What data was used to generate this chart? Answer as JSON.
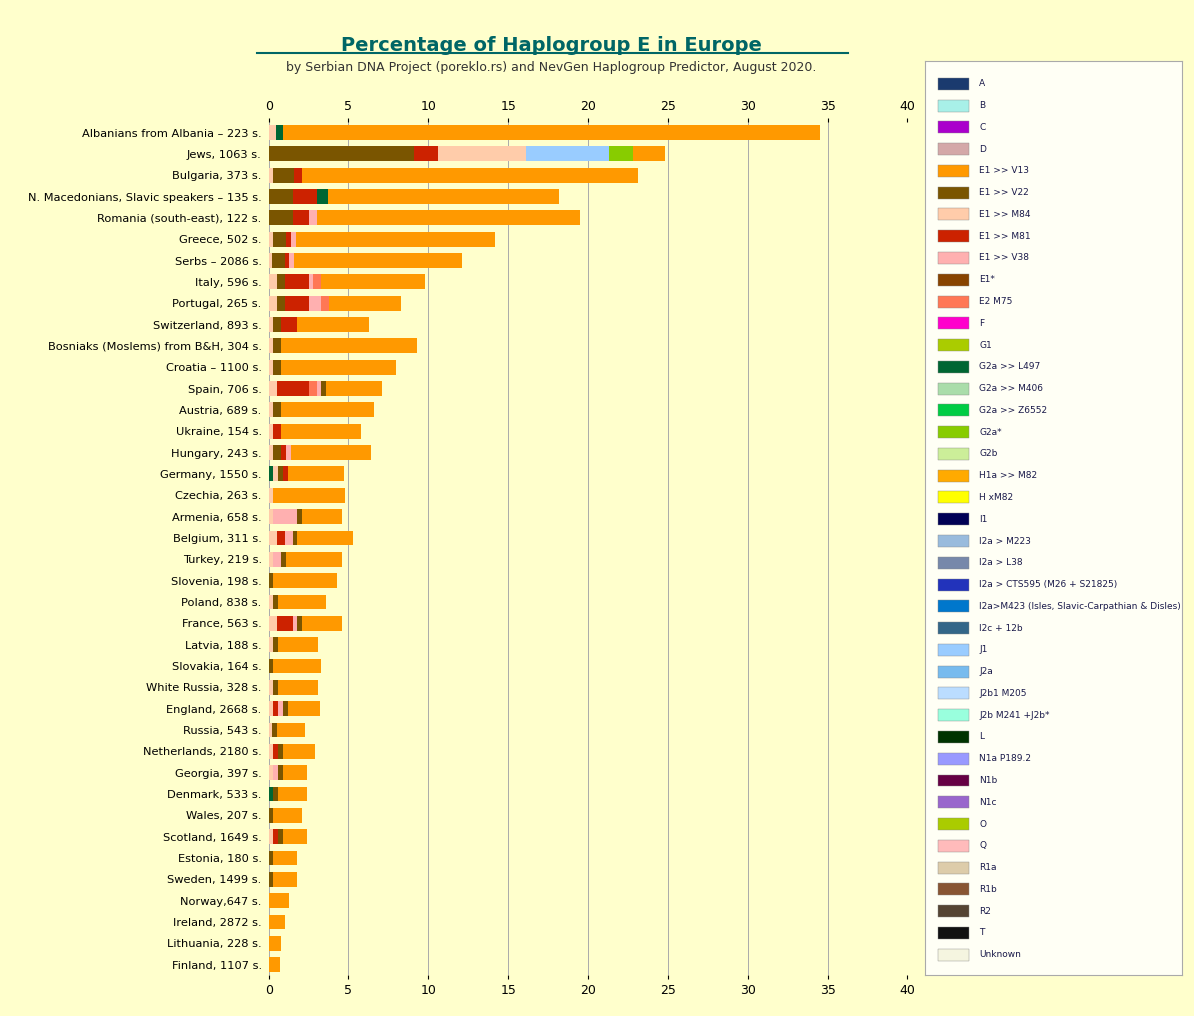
{
  "title": "Percentage of Haplogroup E in Europe",
  "subtitle": "by Serbian DNA Project (poreklo.rs) and NevGen Haplogroup Predictor, August 2020.",
  "bg": "#FFFFCC",
  "legend_bg": "#FFFFF5",
  "title_color": "#006666",
  "subtitle_color": "#333333",
  "xlim": [
    0,
    40
  ],
  "xticks": [
    0,
    5,
    10,
    15,
    20,
    25,
    30,
    35,
    40
  ],
  "countries": [
    "Albanians from Albania – 223 s.",
    "Jews, 1063 s.",
    "Bulgaria, 373 s.",
    "N. Macedonians, Slavic speakers – 135 s.",
    "Romania (south-east), 122 s.",
    "Greece, 502 s.",
    "Serbs – 2086 s.",
    "Italy, 596 s.",
    "Portugal, 265 s.",
    "Switzerland, 893 s.",
    "Bosniaks (Moslems) from B&H, 304 s.",
    "Croatia – 1100 s.",
    "Spain, 706 s.",
    "Austria, 689 s.",
    "Ukraine, 154 s.",
    "Hungary, 243 s.",
    "Germany, 1550 s.",
    "Czechia, 263 s.",
    "Armenia, 658 s.",
    "Belgium, 311 s.",
    "Turkey, 219 s.",
    "Slovenia, 198 s.",
    "Poland, 838 s.",
    "France, 563 s.",
    "Latvia, 188 s.",
    "Slovakia, 164 s.",
    "White Russia, 328 s.",
    "England, 2668 s.",
    "Russia, 543 s.",
    "Netherlands, 2180 s.",
    "Georgia, 397 s.",
    "Denmark, 533 s.",
    "Wales, 207 s.",
    "Scotland, 1649 s.",
    "Estonia, 180 s.",
    "Sweden, 1499 s.",
    "Norway,647 s.",
    "Ireland, 2872 s.",
    "Lithuania, 228 s.",
    "Finland, 1107 s."
  ],
  "haplogroups": [
    "A",
    "B",
    "C",
    "D",
    "E1 >> V13",
    "E1 >> V22",
    "E1 >> M84",
    "E1 >> M81",
    "E1 >> V38",
    "E1*",
    "E2 M75",
    "F",
    "G1",
    "G2a >> L497",
    "G2a >> M406",
    "G2a >> Z6552",
    "G2a*",
    "G2b",
    "H1a >> M82",
    "H xM82",
    "I1",
    "I2a > M223",
    "I2a > L38",
    "I2a > CTS595 (M26 + S21825)",
    "I2a>M423 (Isles, Slavic-Carpathian & Disles)",
    "I2c + 12b",
    "J1",
    "J2a",
    "J2b1 M205",
    "J2b M241 +J2b*",
    "L",
    "N1a P189.2",
    "N1b",
    "N1c",
    "O",
    "Q",
    "R1a",
    "R1b",
    "R2",
    "T",
    "Unknown"
  ],
  "hap_colors": {
    "A": "#1a3a6e",
    "B": "#a8f0e8",
    "C": "#aa00cc",
    "D": "#d4a8a8",
    "E1 >> V13": "#ff9900",
    "E1 >> V22": "#7a5500",
    "E1 >> M84": "#ffccaa",
    "E1 >> M81": "#cc2200",
    "E1 >> V38": "#ffb0b0",
    "E1*": "#884400",
    "E2 M75": "#ff7755",
    "F": "#ff00cc",
    "G1": "#aacc00",
    "G2a >> L497": "#006633",
    "G2a >> M406": "#aaddaa",
    "G2a >> Z6552": "#00cc44",
    "G2a*": "#88cc00",
    "G2b": "#ccee99",
    "H1a >> M82": "#ffaa00",
    "H xM82": "#ffff00",
    "I1": "#000055",
    "I2a > M223": "#99bbdd",
    "I2a > L38": "#7788aa",
    "I2a > CTS595 (M26 + S21825)": "#2233bb",
    "I2a>M423 (Isles, Slavic-Carpathian & Disles)": "#0077cc",
    "I2c + 12b": "#336688",
    "J1": "#99ccff",
    "J2a": "#77bbee",
    "J2b1 M205": "#bbddff",
    "J2b M241 +J2b*": "#99ffdd",
    "L": "#003300",
    "N1a P189.2": "#9999ff",
    "N1b": "#660044",
    "N1c": "#9966cc",
    "O": "#aacc00",
    "Q": "#ffbbbb",
    "R1a": "#ddccaa",
    "R1b": "#885533",
    "R2": "#554433",
    "T": "#111111",
    "Unknown": "#f5f5e0"
  },
  "bar_data": {
    "Albanians from Albania – 223 s.": [
      [
        "E1 >> M84",
        0.45
      ],
      [
        "G2a >> L497",
        0.45
      ],
      [
        "E1 >> V13",
        33.6
      ]
    ],
    "Jews, 1063 s.": [
      [
        "E1 >> V22",
        9.1
      ],
      [
        "E1 >> M81",
        1.5
      ],
      [
        "E1 >> M84",
        5.5
      ],
      [
        "J1",
        5.2
      ],
      [
        "G2a*",
        1.5
      ],
      [
        "E1 >> V13",
        2.0
      ]
    ],
    "Bulgaria, 373 s.": [
      [
        "E1 >> M84",
        0.3
      ],
      [
        "E1 >> V22",
        1.3
      ],
      [
        "E1 >> M81",
        0.5
      ],
      [
        "E1 >> V13",
        21.0
      ]
    ],
    "N. Macedonians, Slavic speakers – 135 s.": [
      [
        "E1 >> V22",
        1.5
      ],
      [
        "E1 >> M81",
        1.5
      ],
      [
        "G2a >> L497",
        0.7
      ],
      [
        "E1 >> V13",
        14.5
      ]
    ],
    "Romania (south-east), 122 s.": [
      [
        "E1 >> V22",
        1.5
      ],
      [
        "E1 >> M81",
        1.0
      ],
      [
        "E1 >> V38",
        0.5
      ],
      [
        "E1 >> V13",
        16.5
      ]
    ],
    "Greece, 502 s.": [
      [
        "E1 >> M84",
        0.3
      ],
      [
        "E1 >> V22",
        0.8
      ],
      [
        "E1 >> M81",
        0.3
      ],
      [
        "E1 >> V38",
        0.3
      ],
      [
        "E1 >> V13",
        12.5
      ]
    ],
    "Serbs – 2086 s.": [
      [
        "E1 >> M84",
        0.2
      ],
      [
        "E1 >> V22",
        0.8
      ],
      [
        "E1 >> M81",
        0.3
      ],
      [
        "E1 >> V38",
        0.3
      ],
      [
        "E1 >> V13",
        10.5
      ]
    ],
    "Italy, 596 s.": [
      [
        "E1 >> M84",
        0.5
      ],
      [
        "E1 >> V22",
        0.5
      ],
      [
        "E1 >> M81",
        1.5
      ],
      [
        "E1 >> V38",
        0.3
      ],
      [
        "E2 M75",
        0.5
      ],
      [
        "E1 >> V13",
        6.5
      ]
    ],
    "Portugal, 265 s.": [
      [
        "E1 >> M84",
        0.5
      ],
      [
        "E1 >> V22",
        0.5
      ],
      [
        "E1 >> M81",
        1.5
      ],
      [
        "E1 >> V38",
        0.8
      ],
      [
        "E2 M75",
        0.5
      ],
      [
        "E1 >> V13",
        4.5
      ]
    ],
    "Switzerland, 893 s.": [
      [
        "E1 >> M84",
        0.3
      ],
      [
        "E1 >> V22",
        0.5
      ],
      [
        "E1 >> M81",
        1.0
      ],
      [
        "E1 >> V13",
        4.5
      ]
    ],
    "Bosniaks (Moslems) from B&H, 304 s.": [
      [
        "E1 >> M84",
        0.3
      ],
      [
        "E1 >> V22",
        0.5
      ],
      [
        "E1 >> V13",
        8.5
      ]
    ],
    "Croatia – 1100 s.": [
      [
        "E1 >> M84",
        0.3
      ],
      [
        "E1 >> V22",
        0.5
      ],
      [
        "E1 >> V13",
        7.2
      ]
    ],
    "Spain, 706 s.": [
      [
        "E1 >> M84",
        0.5
      ],
      [
        "E1 >> M81",
        2.0
      ],
      [
        "E2 M75",
        0.5
      ],
      [
        "E1 >> V38",
        0.3
      ],
      [
        "E1 >> V22",
        0.3
      ],
      [
        "E1 >> V13",
        3.5
      ]
    ],
    "Austria, 689 s.": [
      [
        "E1 >> M84",
        0.3
      ],
      [
        "E1 >> V22",
        0.5
      ],
      [
        "E1 >> V13",
        5.8
      ]
    ],
    "Ukraine, 154 s.": [
      [
        "E1 >> M84",
        0.3
      ],
      [
        "E1 >> M81",
        0.5
      ],
      [
        "E1 >> V13",
        5.0
      ]
    ],
    "Hungary, 243 s.": [
      [
        "E1 >> M84",
        0.3
      ],
      [
        "E1 >> V22",
        0.5
      ],
      [
        "E1 >> M81",
        0.3
      ],
      [
        "E1 >> V38",
        0.3
      ],
      [
        "E1 >> V13",
        5.0
      ]
    ],
    "Germany, 1550 s.": [
      [
        "G2a >> L497",
        0.3
      ],
      [
        "E1 >> M84",
        0.3
      ],
      [
        "E1 >> V22",
        0.3
      ],
      [
        "E1 >> M81",
        0.3
      ],
      [
        "E1 >> V13",
        3.5
      ]
    ],
    "Czechia, 263 s.": [
      [
        "E1 >> M84",
        0.3
      ],
      [
        "E1 >> V13",
        4.5
      ]
    ],
    "Armenia, 658 s.": [
      [
        "E1 >> M84",
        0.3
      ],
      [
        "E1 >> V38",
        1.5
      ],
      [
        "E1 >> V22",
        0.3
      ],
      [
        "E1 >> V13",
        2.5
      ]
    ],
    "Belgium, 311 s.": [
      [
        "E1 >> M84",
        0.5
      ],
      [
        "E1 >> M81",
        0.5
      ],
      [
        "E1 >> V38",
        0.5
      ],
      [
        "E1 >> V22",
        0.3
      ],
      [
        "E1 >> V13",
        3.5
      ]
    ],
    "Turkey, 219 s.": [
      [
        "E1 >> M84",
        0.3
      ],
      [
        "E1 >> V38",
        0.5
      ],
      [
        "E1 >> V22",
        0.3
      ],
      [
        "E1 >> V13",
        3.5
      ]
    ],
    "Slovenia, 198 s.": [
      [
        "E1 >> V22",
        0.3
      ],
      [
        "E1 >> V13",
        4.0
      ]
    ],
    "Poland, 838 s.": [
      [
        "E1 >> M84",
        0.3
      ],
      [
        "E1 >> V22",
        0.3
      ],
      [
        "E1 >> V13",
        3.0
      ]
    ],
    "France, 563 s.": [
      [
        "E1 >> M84",
        0.5
      ],
      [
        "E1 >> M81",
        1.0
      ],
      [
        "E1 >> V38",
        0.3
      ],
      [
        "E1 >> V22",
        0.3
      ],
      [
        "E1 >> V13",
        2.5
      ]
    ],
    "Latvia, 188 s.": [
      [
        "E1 >> M84",
        0.3
      ],
      [
        "E1 >> V22",
        0.3
      ],
      [
        "E1 >> V13",
        2.5
      ]
    ],
    "Slovakia, 164 s.": [
      [
        "E1 >> V22",
        0.3
      ],
      [
        "E1 >> V13",
        3.0
      ]
    ],
    "White Russia, 328 s.": [
      [
        "E1 >> M84",
        0.3
      ],
      [
        "E1 >> V22",
        0.3
      ],
      [
        "E1 >> V13",
        2.5
      ]
    ],
    "England, 2668 s.": [
      [
        "E1 >> M84",
        0.3
      ],
      [
        "E1 >> M81",
        0.3
      ],
      [
        "E1 >> V38",
        0.3
      ],
      [
        "E1 >> V22",
        0.3
      ],
      [
        "E1 >> V13",
        2.0
      ]
    ],
    "Russia, 543 s.": [
      [
        "E1 >> M84",
        0.2
      ],
      [
        "E1 >> V22",
        0.3
      ],
      [
        "E1 >> V13",
        1.8
      ]
    ],
    "Netherlands, 2180 s.": [
      [
        "E1 >> M84",
        0.3
      ],
      [
        "E1 >> M81",
        0.3
      ],
      [
        "E1 >> V22",
        0.3
      ],
      [
        "E1 >> V13",
        2.0
      ]
    ],
    "Georgia, 397 s.": [
      [
        "E1 >> M84",
        0.3
      ],
      [
        "E1 >> V38",
        0.3
      ],
      [
        "E1 >> V22",
        0.3
      ],
      [
        "E1 >> V13",
        1.5
      ]
    ],
    "Denmark, 533 s.": [
      [
        "G2a >> L497",
        0.3
      ],
      [
        "E1 >> V22",
        0.3
      ],
      [
        "E1 >> V13",
        1.8
      ]
    ],
    "Wales, 207 s.": [
      [
        "E1 >> V22",
        0.3
      ],
      [
        "E1 >> V13",
        1.8
      ]
    ],
    "Scotland, 1649 s.": [
      [
        "E1 >> M84",
        0.3
      ],
      [
        "E1 >> M81",
        0.3
      ],
      [
        "E1 >> V22",
        0.3
      ],
      [
        "E1 >> V13",
        1.5
      ]
    ],
    "Estonia, 180 s.": [
      [
        "E1 >> V22",
        0.3
      ],
      [
        "E1 >> V13",
        1.5
      ]
    ],
    "Sweden, 1499 s.": [
      [
        "E1 >> V22",
        0.3
      ],
      [
        "E1 >> V13",
        1.5
      ]
    ],
    "Norway,647 s.": [
      [
        "E1 >> V13",
        1.3
      ]
    ],
    "Ireland, 2872 s.": [
      [
        "E1 >> V13",
        1.0
      ]
    ],
    "Lithuania, 228 s.": [
      [
        "E1 >> V13",
        0.8
      ]
    ],
    "Finland, 1107 s.": [
      [
        "E1 >> V13",
        0.7
      ]
    ]
  }
}
